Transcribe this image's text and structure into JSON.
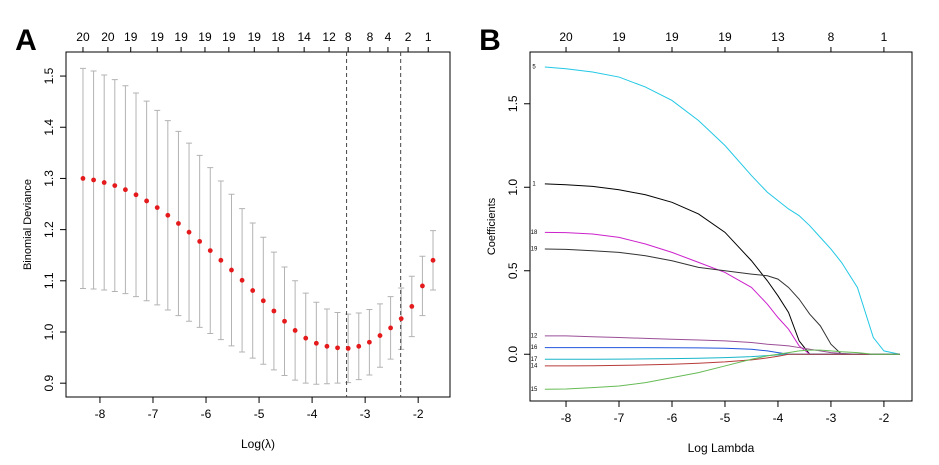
{
  "chart_data": [
    {
      "type": "errorbar",
      "letter": "A",
      "ylabel": "Binomial Deviance",
      "xlabel": "Log(λ)",
      "xlim": [
        -8.64,
        -1.4
      ],
      "ylim": [
        0.873,
        1.547
      ],
      "xticks": [
        -8,
        -7,
        -6,
        -5,
        -4,
        -3,
        -2
      ],
      "yticks": [
        0.9,
        {
          "value": 1,
          "label": "1.0"
        },
        1.1,
        1.2,
        1.3,
        1.4,
        1.5
      ],
      "x2ticks": [
        {
          "value": -8.32,
          "label": "20"
        },
        {
          "value": -7.85,
          "label": "20"
        },
        {
          "value": -7.42,
          "label": "19"
        },
        {
          "value": -6.92,
          "label": "19"
        },
        {
          "value": -6.47,
          "label": "19"
        },
        {
          "value": -6.02,
          "label": "19"
        },
        {
          "value": -5.57,
          "label": "19"
        },
        {
          "value": -5.09,
          "label": "19"
        },
        {
          "value": -4.64,
          "label": "18"
        },
        {
          "value": -4.15,
          "label": "14"
        },
        {
          "value": -3.68,
          "label": "12"
        },
        {
          "value": -3.32,
          "label": "8"
        },
        {
          "value": -2.91,
          "label": "8"
        },
        {
          "value": -2.57,
          "label": "4"
        },
        {
          "value": -2.19,
          "label": "2"
        },
        {
          "value": -1.81,
          "label": "1"
        }
      ],
      "vlines": [
        -3.35,
        -2.33
      ],
      "color": "#e41a1c",
      "error_color": "#b3b3b3",
      "x": [
        -8.32,
        -8.12,
        -7.92,
        -7.72,
        -7.52,
        -7.32,
        -7.12,
        -6.92,
        -6.72,
        -6.52,
        -6.32,
        -6.12,
        -5.92,
        -5.72,
        -5.52,
        -5.32,
        -5.12,
        -4.92,
        -4.72,
        -4.52,
        -4.32,
        -4.12,
        -3.92,
        -3.72,
        -3.52,
        -3.32,
        -3.12,
        -2.92,
        -2.72,
        -2.52,
        -2.32,
        -2.12,
        -1.92,
        -1.72
      ],
      "values": [
        1.3,
        1.297,
        1.292,
        1.286,
        1.278,
        1.268,
        1.256,
        1.243,
        1.228,
        1.212,
        1.195,
        1.177,
        1.159,
        1.14,
        1.121,
        1.101,
        1.081,
        1.061,
        1.041,
        1.021,
        1.003,
        0.988,
        0.978,
        0.972,
        0.969,
        0.968,
        0.972,
        0.98,
        0.993,
        1.008,
        1.026,
        1.05,
        1.09,
        1.14
      ],
      "errors": [
        0.215,
        0.213,
        0.21,
        0.207,
        0.203,
        0.199,
        0.195,
        0.19,
        0.185,
        0.18,
        0.174,
        0.168,
        0.162,
        0.155,
        0.148,
        0.14,
        0.132,
        0.124,
        0.115,
        0.106,
        0.097,
        0.088,
        0.08,
        0.073,
        0.069,
        0.067,
        0.065,
        0.064,
        0.062,
        0.061,
        0.06,
        0.059,
        0.058,
        0.058
      ]
    },
    {
      "type": "line",
      "letter": "B",
      "ylabel": "Coefficients",
      "xlabel": "Log Lambda",
      "xlim": [
        -8.68,
        -1.47
      ],
      "ylim": [
        -0.28,
        1.81
      ],
      "xticks": [
        -8,
        -7,
        -6,
        -5,
        -4,
        -3,
        -2
      ],
      "yticks": [
        {
          "value": 0,
          "label": "0.0"
        },
        0.5,
        {
          "value": 1,
          "label": "1.0"
        },
        1.5
      ],
      "x2ticks": [
        {
          "value": -8,
          "label": "20"
        },
        {
          "value": -7,
          "label": "19"
        },
        {
          "value": -6,
          "label": "19"
        },
        {
          "value": -5,
          "label": "19"
        },
        {
          "value": -4,
          "label": "13"
        },
        {
          "value": -3,
          "label": "8"
        },
        {
          "value": -2,
          "label": "1"
        }
      ],
      "x": [
        -8.4,
        -8,
        -7.5,
        -7,
        -6.5,
        -6,
        -5.5,
        -5,
        -4.5,
        -4.2,
        -4,
        -3.8,
        -3.6,
        -3.4,
        -3.2,
        -3,
        -2.8,
        -2.5,
        -2.2,
        -2,
        -1.7
      ],
      "series": [
        {
          "name": "5",
          "color": "#22c8e5",
          "values": [
            1.72,
            1.71,
            1.69,
            1.66,
            1.6,
            1.52,
            1.4,
            1.25,
            1.07,
            0.97,
            0.92,
            0.87,
            0.83,
            0.77,
            0.7,
            0.63,
            0.55,
            0.4,
            0.1,
            0.02,
            0
          ]
        },
        {
          "name": "1",
          "color": "#000000",
          "values": [
            1.02,
            1.015,
            1.005,
            0.985,
            0.955,
            0.91,
            0.84,
            0.73,
            0.56,
            0.44,
            0.35,
            0.25,
            0.08,
            0,
            0,
            0,
            0,
            0,
            0,
            0,
            0
          ]
        },
        {
          "name": "18",
          "color": "#cc22cc",
          "values": [
            0.73,
            0.728,
            0.72,
            0.7,
            0.66,
            0.61,
            0.55,
            0.49,
            0.4,
            0.3,
            0.22,
            0.15,
            0.05,
            0,
            0,
            0,
            0,
            0,
            0,
            0,
            0
          ]
        },
        {
          "name": "19",
          "color": "#333333",
          "values": [
            0.63,
            0.628,
            0.62,
            0.61,
            0.59,
            0.56,
            0.52,
            0.5,
            0.48,
            0.47,
            0.45,
            0.4,
            0.33,
            0.24,
            0.17,
            0.06,
            0,
            0,
            0,
            0,
            0
          ]
        },
        {
          "name": "12",
          "color": "#9b4f96",
          "values": [
            0.11,
            0.11,
            0.105,
            0.1,
            0.095,
            0.09,
            0.085,
            0.08,
            0.07,
            0.06,
            0.055,
            0.05,
            0.04,
            0.03,
            0.02,
            0.01,
            0.005,
            0,
            0,
            0,
            0
          ]
        },
        {
          "name": "16",
          "color": "#2255dd",
          "values": [
            0.04,
            0.04,
            0.04,
            0.04,
            0.04,
            0.039,
            0.038,
            0.036,
            0.03,
            0.02,
            0.01,
            0,
            0,
            0,
            0,
            0,
            0,
            0,
            0,
            0,
            0
          ]
        },
        {
          "name": "17",
          "color": "#19b5c9",
          "values": [
            -0.03,
            -0.03,
            -0.03,
            -0.029,
            -0.028,
            -0.026,
            -0.024,
            -0.02,
            -0.014,
            -0.008,
            -0.004,
            0,
            0,
            0,
            0,
            0,
            0,
            0,
            0,
            0,
            0
          ]
        },
        {
          "name": "14",
          "color": "#b83c3c",
          "values": [
            -0.07,
            -0.07,
            -0.069,
            -0.067,
            -0.064,
            -0.06,
            -0.054,
            -0.046,
            -0.034,
            -0.022,
            -0.012,
            0,
            0,
            0,
            0,
            0,
            0,
            0,
            0,
            0,
            0
          ]
        },
        {
          "name": "15",
          "color": "#66bb55",
          "values": [
            -0.21,
            -0.208,
            -0.2,
            -0.19,
            -0.17,
            -0.14,
            -0.11,
            -0.07,
            -0.03,
            -0.01,
            0,
            0.01,
            0.02,
            0.025,
            0.025,
            0.02,
            0.015,
            0.01,
            0,
            0,
            0
          ]
        }
      ]
    }
  ]
}
